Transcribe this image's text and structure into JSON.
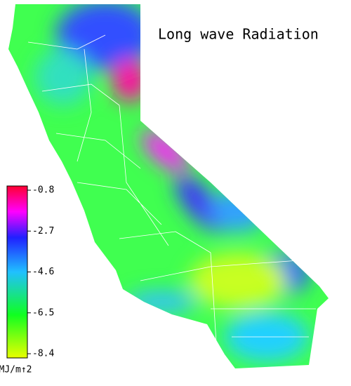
{
  "title": "Long wave Radiation",
  "colorbar": {
    "ticks": [
      -0.8,
      -2.7,
      -4.6,
      -6.5,
      -8.4
    ],
    "unit": "MJ/m↑2"
  }
}
